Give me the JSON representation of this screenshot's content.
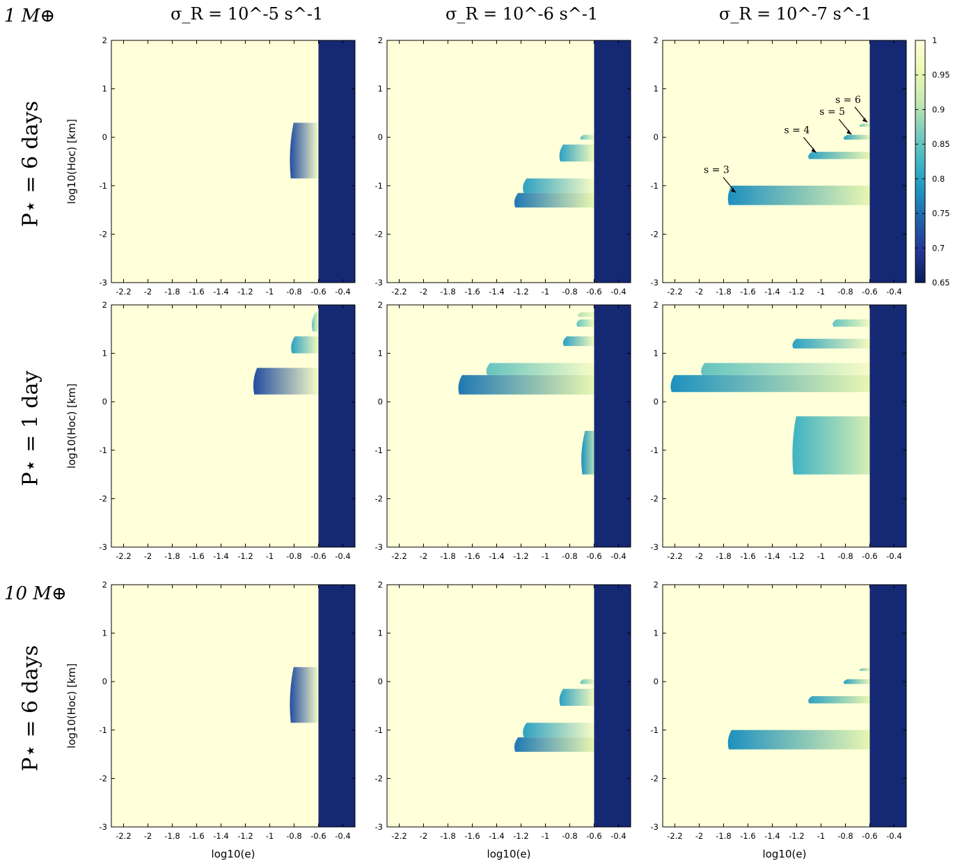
{
  "figure": {
    "column_titles": [
      "σ_R = 10^-5 s^-1",
      "σ_R = 10^-6 s^-1",
      "σ_R = 10^-7 s^-1"
    ],
    "row_labels": [
      "P⋆ = 6 days",
      "P⋆ = 1 day",
      "P⋆ = 6 days"
    ],
    "mass_labels": [
      "1 M⊕",
      "10 M⊕"
    ],
    "ylabel": "log10(Hoc) [km]",
    "xlabel": "log10(e)",
    "colorbar": {
      "min": 0.65,
      "max": 1,
      "ticks": [
        "1",
        "0.95",
        "0.9",
        "0.85",
        "0.8",
        "0.75",
        "0.7",
        "0.65"
      ],
      "colors": [
        "#ffffd9",
        "#edf8b1",
        "#c7e9b4",
        "#7fcdbb",
        "#41b6c4",
        "#1d91c0",
        "#225ea8",
        "#253494",
        "#081d58"
      ]
    },
    "annotations": [
      "s = 3",
      "s = 4",
      "s = 5",
      "s = 6"
    ]
  },
  "chart_data": {
    "type": "heatmap",
    "panels_layout": "3 rows x 3 columns",
    "x_label": "log10(e)",
    "y_label": "log10(Hoc) [km]",
    "x_range": [
      -2.3,
      -0.3
    ],
    "y_range": [
      -3,
      2
    ],
    "x_ticks": [
      "-2.2",
      "-2",
      "-1.8",
      "-1.6",
      "-1.4",
      "-1.2",
      "-1",
      "-0.8",
      "-0.6",
      "-0.4"
    ],
    "y_ticks": [
      "2",
      "1",
      "0",
      "-1",
      "-2",
      "-3"
    ],
    "value_range": [
      0.65,
      1
    ],
    "panels": [
      {
        "row": 1,
        "col": 1,
        "mass": "1 M⊕",
        "period": "6 days",
        "sigma": "10^-5",
        "boundary_x": -0.6,
        "region_right_value": 0.67,
        "bands": [
          {
            "y": [
              -0.85,
              0.3
            ],
            "x_start": -0.85,
            "value_low": 0.72,
            "value_high": 0.98
          }
        ]
      },
      {
        "row": 1,
        "col": 2,
        "mass": "1 M⊕",
        "period": "6 days",
        "sigma": "10^-6",
        "boundary_x": -0.6,
        "region_right_value": 0.67,
        "bands": [
          {
            "y": [
              -1.45,
              -1.15
            ],
            "x_start": -1.27,
            "value_low": 0.76,
            "value_high": 0.95
          },
          {
            "y": [
              -1.15,
              -0.85
            ],
            "x_start": -1.2,
            "value_low": 0.8,
            "value_high": 0.98
          },
          {
            "y": [
              -0.5,
              -0.15
            ],
            "x_start": -0.9,
            "value_low": 0.8,
            "value_high": 0.97
          },
          {
            "y": [
              -0.05,
              0.05
            ],
            "x_start": -0.73,
            "value_low": 0.85,
            "value_high": 0.97
          }
        ]
      },
      {
        "row": 1,
        "col": 3,
        "mass": "1 M⊕",
        "period": "6 days",
        "sigma": "10^-7",
        "boundary_x": -0.6,
        "region_right_value": 0.67,
        "bands": [
          {
            "y": [
              -1.4,
              -1.0
            ],
            "x_start": -1.78,
            "value_low": 0.78,
            "value_high": 0.95,
            "label": "s = 3"
          },
          {
            "y": [
              -0.45,
              -0.3
            ],
            "x_start": -1.12,
            "value_low": 0.8,
            "value_high": 0.95,
            "label": "s = 4"
          },
          {
            "y": [
              -0.05,
              0.05
            ],
            "x_start": -0.83,
            "value_low": 0.8,
            "value_high": 0.95,
            "label": "s = 5"
          },
          {
            "y": [
              0.22,
              0.28
            ],
            "x_start": -0.7,
            "value_low": 0.85,
            "value_high": 0.95,
            "label": "s = 6"
          }
        ]
      },
      {
        "row": 2,
        "col": 1,
        "mass": "1 M⊕",
        "period": "1 day",
        "sigma": "10^-5",
        "boundary_x": -0.6,
        "region_right_value": 0.67,
        "bands": [
          {
            "y": [
              0.15,
              0.7
            ],
            "x_start": -1.15,
            "value_low": 0.72,
            "value_high": 0.98
          },
          {
            "y": [
              1.0,
              1.35
            ],
            "x_start": -0.84,
            "value_low": 0.8,
            "value_high": 0.97
          },
          {
            "y": [
              1.45,
              1.85
            ],
            "x_start": -0.67,
            "value_low": 0.85,
            "value_high": 0.97
          }
        ]
      },
      {
        "row": 2,
        "col": 2,
        "mass": "1 M⊕",
        "period": "1 day",
        "sigma": "10^-6",
        "boundary_x": -0.6,
        "region_right_value": 0.67,
        "bands": [
          {
            "y": [
              0.15,
              0.55
            ],
            "x_start": -1.73,
            "value_low": 0.76,
            "value_high": 0.95
          },
          {
            "y": [
              0.55,
              0.8
            ],
            "x_start": -1.5,
            "value_low": 0.85,
            "value_high": 0.98
          },
          {
            "y": [
              -1.5,
              -0.6
            ],
            "x_start": -0.72,
            "value_low": 0.78,
            "value_high": 0.9
          },
          {
            "y": [
              1.15,
              1.35
            ],
            "x_start": -0.87,
            "value_low": 0.8,
            "value_high": 0.97
          },
          {
            "y": [
              1.55,
              1.7
            ],
            "x_start": -0.76,
            "value_low": 0.85,
            "value_high": 0.97
          },
          {
            "y": [
              1.75,
              1.85
            ],
            "x_start": -0.75,
            "value_low": 0.9,
            "value_high": 0.97
          }
        ]
      },
      {
        "row": 2,
        "col": 3,
        "mass": "1 M⊕",
        "period": "1 day",
        "sigma": "10^-7",
        "boundary_x": -0.6,
        "region_right_value": 0.67,
        "bands": [
          {
            "y": [
              0.2,
              0.55
            ],
            "x_start": -2.25,
            "value_low": 0.78,
            "value_high": 0.95
          },
          {
            "y": [
              0.55,
              0.8
            ],
            "x_start": -2.0,
            "value_low": 0.85,
            "value_high": 0.98
          },
          {
            "y": [
              1.1,
              1.3
            ],
            "x_start": -1.25,
            "value_low": 0.8,
            "value_high": 0.97
          },
          {
            "y": [
              1.55,
              1.7
            ],
            "x_start": -0.92,
            "value_low": 0.85,
            "value_high": 0.97
          },
          {
            "y": [
              -1.5,
              -0.3
            ],
            "x_start": -1.25,
            "value_low": 0.82,
            "value_high": 0.93
          }
        ]
      },
      {
        "row": 3,
        "col": 1,
        "mass": "10 M⊕",
        "period": "6 days",
        "sigma": "10^-5",
        "boundary_x": -0.6,
        "region_right_value": 0.67,
        "bands": [
          {
            "y": [
              -0.85,
              0.3
            ],
            "x_start": -0.85,
            "value_low": 0.72,
            "value_high": 0.98
          }
        ]
      },
      {
        "row": 3,
        "col": 2,
        "mass": "10 M⊕",
        "period": "6 days",
        "sigma": "10^-6",
        "boundary_x": -0.6,
        "region_right_value": 0.67,
        "bands": [
          {
            "y": [
              -1.45,
              -1.15
            ],
            "x_start": -1.27,
            "value_low": 0.76,
            "value_high": 0.95
          },
          {
            "y": [
              -1.15,
              -0.85
            ],
            "x_start": -1.2,
            "value_low": 0.8,
            "value_high": 0.98
          },
          {
            "y": [
              -0.5,
              -0.15
            ],
            "x_start": -0.9,
            "value_low": 0.8,
            "value_high": 0.97
          },
          {
            "y": [
              -0.05,
              0.05
            ],
            "x_start": -0.73,
            "value_low": 0.85,
            "value_high": 0.97
          }
        ]
      },
      {
        "row": 3,
        "col": 3,
        "mass": "10 M⊕",
        "period": "6 days",
        "sigma": "10^-7",
        "boundary_x": -0.6,
        "region_right_value": 0.67,
        "bands": [
          {
            "y": [
              -1.4,
              -1.0
            ],
            "x_start": -1.78,
            "value_low": 0.78,
            "value_high": 0.95
          },
          {
            "y": [
              -0.45,
              -0.3
            ],
            "x_start": -1.12,
            "value_low": 0.8,
            "value_high": 0.95
          },
          {
            "y": [
              -0.05,
              0.05
            ],
            "x_start": -0.83,
            "value_low": 0.8,
            "value_high": 0.95
          },
          {
            "y": [
              0.22,
              0.28
            ],
            "x_start": -0.7,
            "value_low": 0.85,
            "value_high": 0.95
          }
        ]
      }
    ]
  }
}
